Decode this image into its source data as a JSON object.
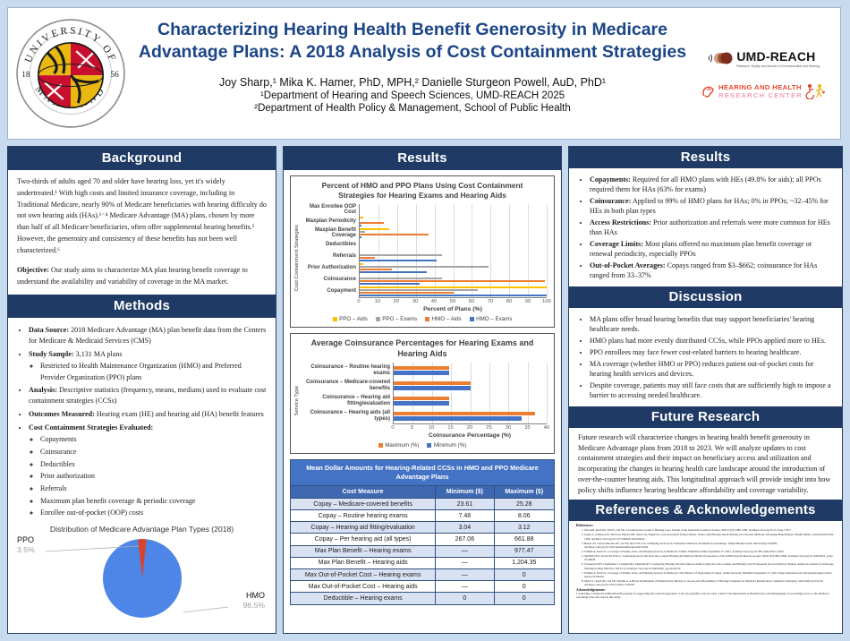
{
  "header": {
    "title_line1": "Characterizing Hearing Health Benefit Generosity in Medicare",
    "title_line2": "Advantage Plans: A 2018 Analysis of Cost Containment Strategies",
    "authors": "Joy Sharp,¹ Mika K. Hamer, PhD, MPH,² Danielle Sturgeon Powell, AuD, PhD¹",
    "affiliation1": "¹Department of Hearing and Speech Sciences, UMD-REACH 2025",
    "affiliation2": "²Department of Health Policy & Management, School of Public Health",
    "seal": {
      "top": "UNIVERSITY OF",
      "bottom": "MARYLAND",
      "left_year": "18",
      "right_year": "56"
    },
    "umd_reach": {
      "name": "UMD-REACH",
      "tagline": "Research, Equity, and Access in Communication and Hearing"
    },
    "hhrc": {
      "line1": "HEARING AND HEALTH",
      "line2": "RESEARCH CENTER"
    }
  },
  "left": {
    "background": {
      "title": "Background",
      "para": "Two-thirds of adults aged 70 and older have hearing loss, yet it's widely undertreated.¹ With high costs and limited insurance coverage, including in Traditional Medicare, nearly 90% of Medicare beneficiaries with hearing difficulty do not own hearing aids (HAs).¹⁻⁴ Medicare Advantage (MA) plans, chosen by more than half of all Medicare beneficiaries, often offer supplemental hearing benefits.⁵ However, the generosity and consistency of these benefits has not been well characterized.⁶",
      "objective_label": "Objective:",
      "objective_text": " Our study aims to characterize MA plan hearing benefit coverage to understand the availability and variability of coverage in the MA market."
    },
    "methods": {
      "title": "Methods",
      "items": [
        {
          "label": "Data Source:",
          "text": "2018 Medicare Advantage (MA) plan benefit data from the Centers for Medicare & Medicaid Services (CMS)"
        },
        {
          "label": "Study Sample:",
          "text": "3,131 MA plans",
          "subs": [
            "Restricted to Health Maintenance Organization (HMO) and Preferred Provider Organization (PPO) plans"
          ]
        },
        {
          "label": "Analysis:",
          "text": "Descriptive statistics (frequency, means, medians) used to evaluate cost containment strategies (CCSs)"
        },
        {
          "label": "Outcomes Measured:",
          "text": "Hearing exam (HE) and hearing aid (HA) benefit features"
        },
        {
          "label": "Cost Containment Strategies Evaluated:",
          "text": "",
          "subs": [
            "Copayments",
            "Coinsurance",
            "Deductibles",
            "Prior authorization",
            "Referrals",
            "Maximum plan benefit coverage & periodic coverage",
            "Enrollee out-of-pocket (OOP) costs"
          ]
        }
      ]
    }
  },
  "middle": {
    "results_title": "Results"
  },
  "right": {
    "results": {
      "title": "Results",
      "items": [
        {
          "label": "Copayments:",
          "text": "Required for all HMO plans with HEs (49.8% for aids); all PPOs required them for HAs (63% for exams)"
        },
        {
          "label": "Coinsurance:",
          "text": "Applied to 99% of HMO plans for HAs; 0% in PPOs; ~32–45% for HEs in both plan types"
        },
        {
          "label": "Access Restrictions:",
          "text": "Prior authorization and referrals were more common for HEs than HAs"
        },
        {
          "label": "Coverage Limits:",
          "text": "Most plans offered no maximum plan benefit coverage or renewal periodicity, especially PPOs"
        },
        {
          "label": "Out-of-Pocket Averages:",
          "text": "Copays ranged from $3–$662; coinsurance for HAs ranged from 33–37%"
        }
      ]
    },
    "discussion": {
      "title": "Discussion",
      "items": [
        "MA plans offer broad hearing benefits that may support beneficiaries' hearing healthcare needs.",
        "HMO plans had more evenly distributed CCSs, while PPOs applied more to HEs.",
        "PPO enrollees may face fewer cost-related barriers to hearing healthcare.",
        "MA coverage (whether HMO or PPO) reduces patient out-of-pocket costs for hearing health services and devices.",
        "Despite coverage, patients may still face costs that are sufficiently high to impose a barrier to accessing needed healthcare."
      ]
    },
    "future": {
      "title": "Future Research",
      "text": "Future research will characterize changes in hearing health benefit generosity in Medicare Advantage plans from 2018 to 2023. We will analyze updates to cost containment strategies and their impact on beneficiary access and utilization and incorporating the changes in hearing health care landscape around the introduction of over-the-counter hearing aids. This longitudinal approach will provide insight into how policy shifts influence hearing healthcare affordability and coverage variability."
    },
    "refs": {
      "title": "References & Acknowledgements",
      "ref_head": "References:",
      "lines": [
        "Jilla AM, Reed NS, Oh ES, Lin FR. A Geriatrician's Guide to Hearing Loss. Journal of the American Geriatrics Society. 2023;71(5):1380-1390. doi:https://doi.org/10.1111/jgs.17871",
        "Gupta A, Johnston KJ, Silver D, Meyers DE, Glied SA, Pagán JA. Cost-Associated Unmet Dental, Vision, And Hearing Needs Among Low-Income Medicare Advantage Beneficiaries. Health Affairs. 2024;43(10):1392-1399. doi:https://doi.org/10.1377/hlthaff.2024.00234",
        "Besser JN, Garcia Morales EE, Lin FR, Reed NS. Use of Hearing Services in Traditional Medicare and Medicare Advantage. JAMA Health Forum. 2024;5(10):e243639. doi:https://doi.org/10.1001/jamahealthforum.2024.3639",
        "Willink A, Davis K. Coverage of Exams, Tests, and Hearing Services in Medicare. JAMA. Published online September 27, 2021. doi:https://doi.org/10.1001/jama.2021.13250",
        "Sheffield SW, Jacobs M, Ellis C. Considerations for the Over-the-Counter Hearing Aid Delivery Model. Perspectives of the ASHA Special Interest Groups. 2022;7(6):1802-1809. doi:https://doi.org/10.1044/2022_persp-22-00038",
        "Swanepoel DW, Oosthuizen I, Graham MA, Manchaiah V. Comparing Hearing Aid Outcomes in Adults Using Over-the-Counter and Hearing Care Professional Service Delivery Models. American Journal of Audiology. Published online March 6, 2023:1-9. doi:https://doi.org/10.1044/2022_aja-22-00130",
        "Willink A, Davis K. Coverage of Exams, Tests, and Hearing Services in Medicare: The Window of Opportunity Is Open. JAMA Network. Published September 27, 2021. https://jamanetwork.com/journals/jama/article-abstract/2784416",
        "Myers C, Reed NS, Lin FR, Willink A. A Broad Examination of Health Policy Barriers to Access and Affordability of Hearing Treatment for Medicare Beneficiaries. Seminars in Hearing. 2023;43(01):013-019. doi:https://doi.org/10.1055/s-0043-1763293"
      ],
      "ack_head": "Acknowledgements:",
      "ack_text": "I would like to thank the UMD-REACH program for supporting this research experience. I am also grateful to Dr. Jie Chen, Chair of the Department of Health Policy and Management, for providing access to the Medicare Advantage plan data used in this study."
    }
  },
  "chart_data": [
    {
      "type": "pie",
      "title": "Distribution of Medicare Advantage Plan Types (2018)",
      "slices": [
        {
          "label": "HMO",
          "value": 96.5,
          "color": "#4e86e8"
        },
        {
          "label": "PPO",
          "value": 3.5,
          "color": "#d8432f"
        }
      ],
      "legend_position": "callout-labels"
    },
    {
      "type": "bar",
      "title": "Percent of HMO and PPO Plans Using Cost Containment Strategies for Hearing Exams and Hearing Aids",
      "xlabel": "Percent of Plans (%)",
      "ylabel": "Cost Containment Strategies",
      "xlim": [
        0,
        100
      ],
      "xticks": [
        0,
        10,
        20,
        30,
        40,
        50,
        60,
        70,
        80,
        90,
        100
      ],
      "grid": true,
      "legend_position": "bottom",
      "categories": [
        "Max Enrollee OOP Cost",
        "Maxplan Periodicity",
        "Maxplan Benefit Coverage",
        "Deductibles",
        "Referrals",
        "Prior Authorization",
        "Coinsurance",
        "Copayment"
      ],
      "series": [
        {
          "name": "PPO – Aids",
          "color": "#FFC000",
          "values": [
            0,
            2,
            16,
            0,
            0,
            2,
            0,
            100
          ]
        },
        {
          "name": "PPO – Exams",
          "color": "#A5A5A5",
          "values": [
            0,
            0,
            3,
            0,
            44,
            69,
            44,
            63
          ]
        },
        {
          "name": "HMO – Aids",
          "color": "#ED7D31",
          "values": [
            0,
            13,
            37,
            0,
            8,
            17,
            99,
            50
          ]
        },
        {
          "name": "HMO – Exams",
          "color": "#4472C4",
          "values": [
            0,
            1,
            1,
            0,
            41,
            36,
            32,
            100
          ]
        }
      ]
    },
    {
      "type": "bar",
      "title": "Average Coinsurance Percentages for Hearing Exams and Hearing Aids",
      "xlabel": "Coinsurance Percentage (%)",
      "ylabel": "Service Type",
      "xlim": [
        0,
        40
      ],
      "xticks": [
        0,
        5,
        10,
        15,
        20,
        25,
        30,
        35,
        40
      ],
      "grid": true,
      "legend_position": "bottom",
      "categories": [
        "Coinsurance – Routine hearing exams",
        "Coinsurance – Medicare-covered benefits",
        "Coinsurance – Hearing aid fitting/evaluation",
        "Coinsurance – Hearing aids (all types)"
      ],
      "series": [
        {
          "name": "Maximum (%)",
          "color": "#ED7D31",
          "values": [
            14.5,
            20,
            14.5,
            37
          ]
        },
        {
          "name": "Minimum (%)",
          "color": "#4472C4",
          "values": [
            14.5,
            20,
            14.5,
            33.5
          ]
        }
      ]
    },
    {
      "type": "table",
      "title": "Mean Dollar Amounts for Hearing-Related CCSs in HMO and PPO Medicare Advantage Plans",
      "columns": [
        "Cost Measure",
        "Minimum ($)",
        "Maximum ($)"
      ],
      "rows": [
        [
          "Copay – Medicare-covered benefits",
          "23.61",
          "25.28"
        ],
        [
          "Copay – Routine hearing exams",
          "7.48",
          "8.06"
        ],
        [
          "Copay – Hearing aid fitting/evaluation",
          "3.04",
          "3.12"
        ],
        [
          "Copay – Per hearing aid (all types)",
          "267.06",
          "661.88"
        ],
        [
          "Max Plan Benefit – Hearing exams",
          "—",
          "977.47"
        ],
        [
          "Max Plan Benefit – Hearing aids",
          "—",
          "1,204.35"
        ],
        [
          "Max Out-of-Pocket Cost – Hearing exams",
          "—",
          "0"
        ],
        [
          "Max Out-of-Pocket Cost – Hearing aids",
          "—",
          "0"
        ],
        [
          "Deductible – Hearing exams",
          "0",
          "0"
        ]
      ]
    }
  ]
}
